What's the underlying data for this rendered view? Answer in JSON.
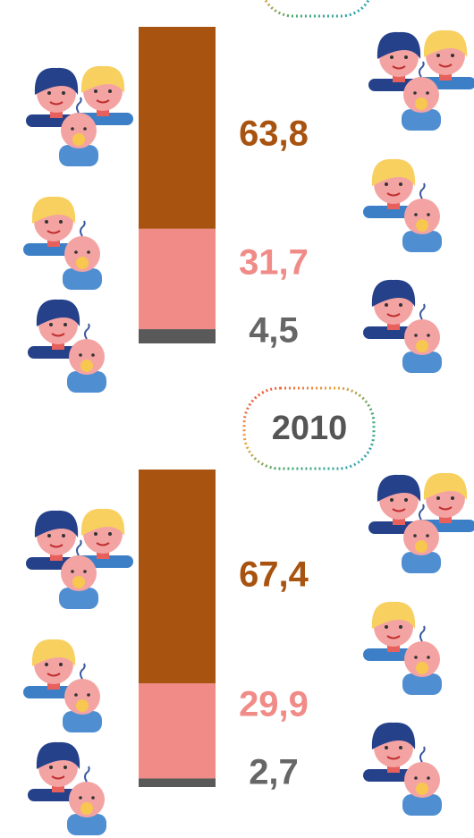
{
  "chart_data": [
    {
      "type": "stacked_bar",
      "values": [
        63.8,
        31.7,
        4.5
      ],
      "value_labels": [
        "63,8",
        "31,7",
        "4,5"
      ],
      "colors": [
        "#a8530f",
        "#f08b88",
        "#595959"
      ],
      "ylim": [
        0,
        100
      ]
    },
    {
      "type": "stacked_bar",
      "title": "2010",
      "values": [
        67.4,
        29.9,
        2.7
      ],
      "value_labels": [
        "67,4",
        "29,9",
        "2,7"
      ],
      "colors": [
        "#a8530f",
        "#f08b88",
        "#595959"
      ],
      "ylim": [
        0,
        100
      ]
    }
  ]
}
